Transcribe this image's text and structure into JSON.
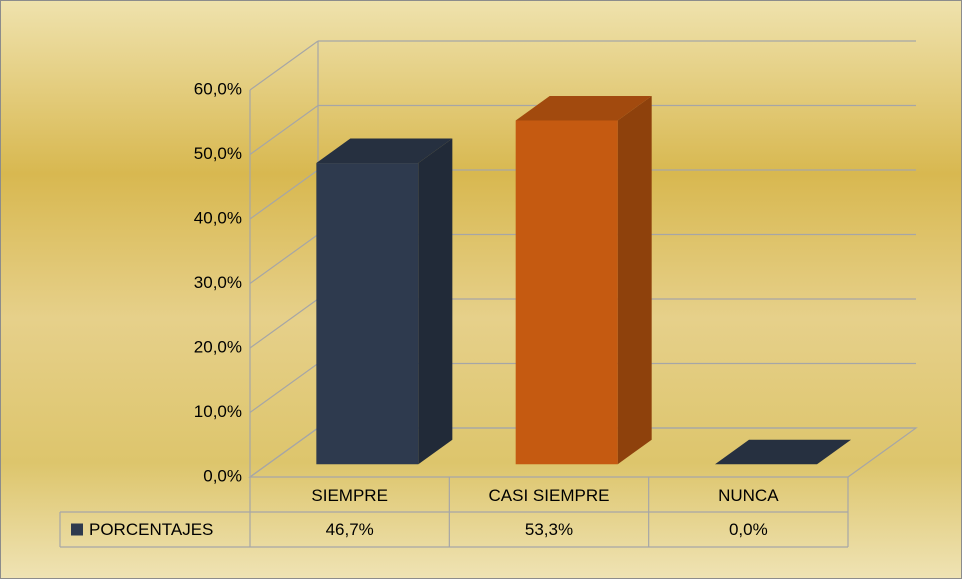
{
  "chart_data": {
    "type": "bar3d",
    "categories": [
      "SIEMPRE",
      "CASI SIEMPRE",
      "NUNCA"
    ],
    "series": [
      {
        "name": "PORCENTAJES",
        "color": "#2e3a4e",
        "point_colors": [
          "#2e3a4e",
          "#c55a11",
          "#2e3a4e"
        ],
        "values": [
          46.7,
          53.3,
          0.0
        ],
        "value_labels": [
          "46,7%",
          "53,3%",
          "0,0%"
        ]
      }
    ],
    "ylim": [
      0,
      60
    ],
    "yticks": [
      {
        "value": 0,
        "label": "0,0%"
      },
      {
        "value": 10,
        "label": "10,0%"
      },
      {
        "value": 20,
        "label": "20,0%"
      },
      {
        "value": 30,
        "label": "30,0%"
      },
      {
        "value": 40,
        "label": "40,0%"
      },
      {
        "value": 50,
        "label": "50,0%"
      },
      {
        "value": 60,
        "label": "60,0%"
      }
    ],
    "grid": true,
    "legend": "table"
  }
}
